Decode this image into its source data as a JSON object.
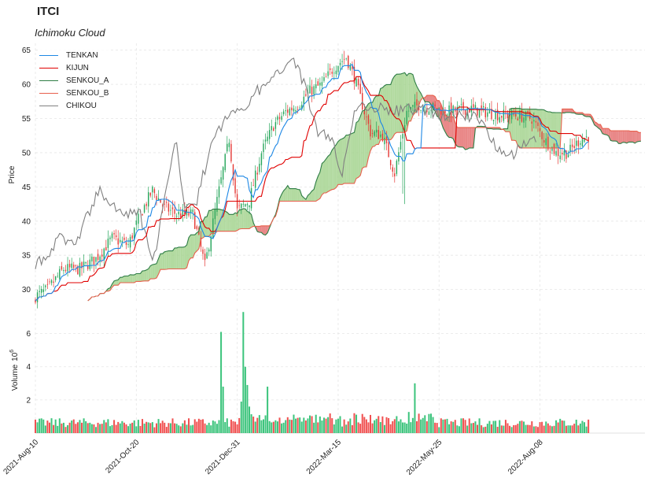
{
  "ticker": "ITCI",
  "subtitle": "Ichimoku Cloud",
  "colors": {
    "tenkan": "#1e88e5",
    "kijun": "#e00000",
    "senkou_a": "#2e7d45",
    "senkou_b": "#e8604c",
    "chikou": "#808080",
    "cloud_bull": "#a5d38f",
    "cloud_bear": "#e57373",
    "candle_up": "#26a65b",
    "candle_down": "#e53935",
    "vol_up": "#3cc47c",
    "vol_down": "#f05050",
    "grid": "#e6e6e6"
  },
  "chart_data": {
    "type": "candlestick-ichimoku",
    "title": "ITCI",
    "subtitle": "Ichimoku Cloud",
    "price_panel": {
      "ylabel": "Price",
      "ylim": [
        28,
        66
      ],
      "yticks": [
        30,
        35,
        40,
        45,
        50,
        55,
        60,
        65
      ]
    },
    "volume_panel": {
      "ylabel": "Volume",
      "ylabel_exp": "6",
      "ylabel_base": "10",
      "ylim": [
        0,
        7.5
      ],
      "yticks": [
        2,
        4,
        6
      ]
    },
    "x_tick_labels": [
      "2021-Aug-10",
      "2021-Oct-20",
      "2021-Dec-31",
      "2022-Mar-15",
      "2022-May-25",
      "2022-Aug-08"
    ],
    "x_tick_positions": [
      0,
      50,
      100,
      150,
      200,
      250
    ],
    "x_range": [
      0,
      302
    ],
    "close_anchors": [
      [
        0,
        29
      ],
      [
        6,
        30
      ],
      [
        14,
        33
      ],
      [
        22,
        33
      ],
      [
        30,
        34.5
      ],
      [
        38,
        37.5
      ],
      [
        46,
        36.5
      ],
      [
        52,
        41
      ],
      [
        58,
        44.5
      ],
      [
        64,
        42
      ],
      [
        70,
        41
      ],
      [
        78,
        41
      ],
      [
        84,
        33.5
      ],
      [
        90,
        43
      ],
      [
        96,
        52
      ],
      [
        100,
        41.5
      ],
      [
        106,
        43
      ],
      [
        112,
        50
      ],
      [
        118,
        54
      ],
      [
        124,
        56
      ],
      [
        130,
        57
      ],
      [
        136,
        59
      ],
      [
        142,
        60
      ],
      [
        148,
        62.5
      ],
      [
        154,
        64
      ],
      [
        158,
        61
      ],
      [
        166,
        53
      ],
      [
        172,
        52.5
      ],
      [
        178,
        47
      ],
      [
        184,
        56
      ],
      [
        190,
        57
      ],
      [
        198,
        56.5
      ],
      [
        206,
        56
      ],
      [
        214,
        56.5
      ],
      [
        222,
        56
      ],
      [
        230,
        55.5
      ],
      [
        238,
        55.5
      ],
      [
        246,
        55
      ],
      [
        252,
        52
      ],
      [
        258,
        50
      ],
      [
        264,
        50
      ],
      [
        270,
        52
      ]
    ],
    "last_candle_index": 274,
    "cloud_extends_to": 302,
    "volume_spikes": [
      [
        92,
        6.1
      ],
      [
        93,
        2.8
      ],
      [
        103,
        7.3
      ],
      [
        104,
        4
      ],
      [
        105,
        2.9
      ],
      [
        115,
        2.8
      ],
      [
        188,
        3
      ],
      [
        102,
        1.9
      ],
      [
        106,
        1.6
      ]
    ],
    "series": [
      {
        "name": "TENKAN",
        "color": "#1e88e5"
      },
      {
        "name": "KIJUN",
        "color": "#e00000"
      },
      {
        "name": "SENKOU_A",
        "color": "#2e7d45"
      },
      {
        "name": "SENKOU_B",
        "color": "#e8604c"
      },
      {
        "name": "CHIKOU",
        "color": "#808080"
      }
    ]
  }
}
